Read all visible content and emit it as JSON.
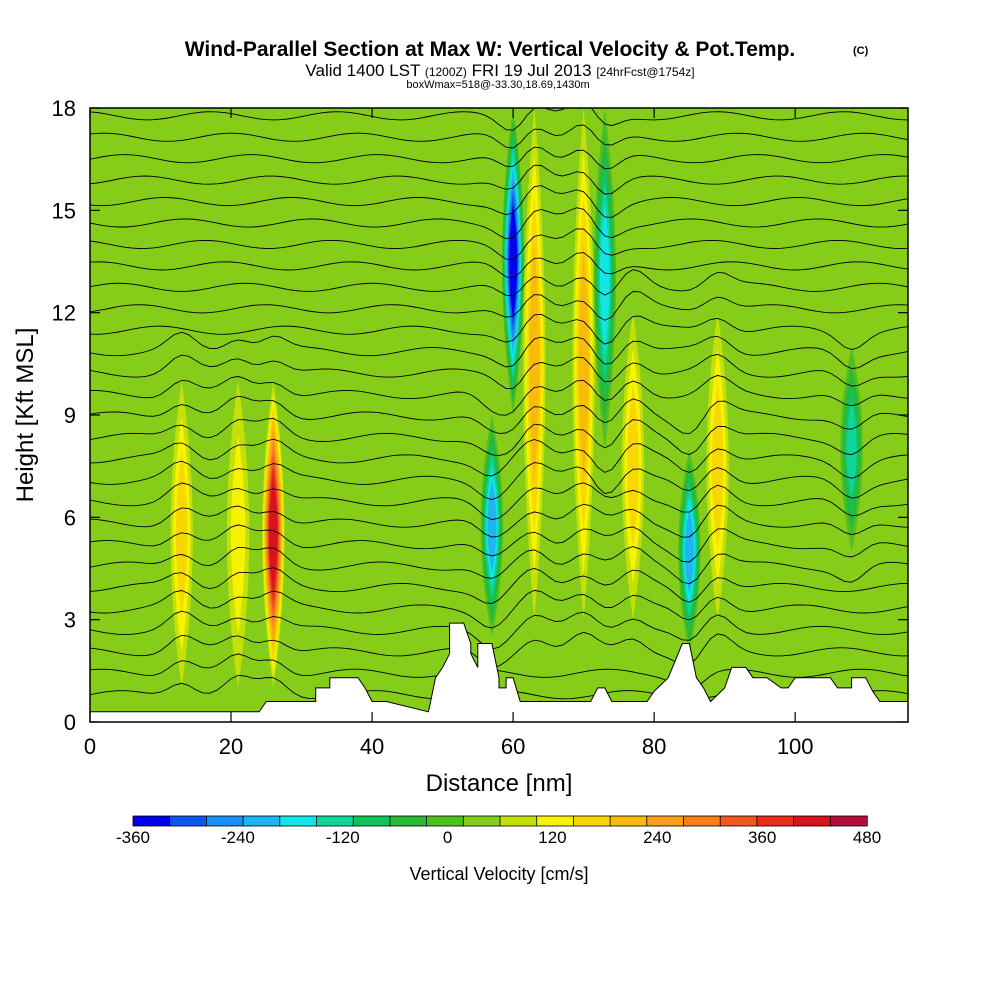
{
  "title": {
    "main": "Wind-Parallel Section at Max W: Vertical Velocity & Pot.Temp.",
    "copyright": "(C)",
    "sub_a": "Valid 1400 LST",
    "sub_b": "(1200Z)",
    "sub_c": "FRI 19 Jul 2013",
    "sub_d": "[24hrFcst@1754z]",
    "small": "boxWmax=518@-33.30,18.69,1430m"
  },
  "chart_data": {
    "type": "heatmap",
    "title": "Wind-Parallel Section at Max W: Vertical Velocity & Pot.Temp.",
    "xlabel": "Distance [nm]",
    "ylabel": "Height [Kft MSL]",
    "xlim": [
      0,
      116
    ],
    "ylim": [
      0,
      18
    ],
    "xticks": [
      0,
      20,
      40,
      60,
      80,
      100
    ],
    "yticks": [
      0,
      3,
      6,
      9,
      12,
      15,
      18
    ],
    "background_value_cm_s": 30,
    "velocity_features": [
      {
        "x": 26,
        "value": 420,
        "ymin": 1.0,
        "ymax": 10,
        "sign": "up"
      },
      {
        "x": 13,
        "value": 150,
        "ymin": 1.0,
        "ymax": 10,
        "sign": "up"
      },
      {
        "x": 21,
        "value": 120,
        "ymin": 1.0,
        "ymax": 10,
        "sign": "up"
      },
      {
        "x": 57,
        "value": -210,
        "ymin": 2.5,
        "ymax": 9,
        "sign": "down"
      },
      {
        "x": 60,
        "value": -330,
        "ymin": 9,
        "ymax": 18,
        "sign": "down"
      },
      {
        "x": 63,
        "value": 200,
        "ymin": 3,
        "ymax": 18,
        "sign": "up"
      },
      {
        "x": 70,
        "value": 200,
        "ymin": 3,
        "ymax": 18,
        "sign": "up"
      },
      {
        "x": 73,
        "value": -180,
        "ymin": 8,
        "ymax": 18,
        "sign": "down"
      },
      {
        "x": 77,
        "value": 180,
        "ymin": 3,
        "ymax": 12,
        "sign": "up"
      },
      {
        "x": 85,
        "value": -210,
        "ymin": 2,
        "ymax": 8,
        "sign": "down"
      },
      {
        "x": 89,
        "value": 160,
        "ymin": 3,
        "ymax": 12,
        "sign": "up"
      },
      {
        "x": 108,
        "value": -150,
        "ymin": 5,
        "ymax": 11,
        "sign": "down"
      }
    ],
    "terrain_kft": [
      [
        0,
        0.3
      ],
      [
        24,
        0.3
      ],
      [
        25,
        0.6
      ],
      [
        32,
        0.6
      ],
      [
        32,
        1.0
      ],
      [
        34,
        1.0
      ],
      [
        34,
        1.3
      ],
      [
        38,
        1.3
      ],
      [
        39,
        1.0
      ],
      [
        40,
        0.6
      ],
      [
        42,
        0.6
      ],
      [
        48,
        0.3
      ],
      [
        49,
        1.3
      ],
      [
        50,
        1.6
      ],
      [
        51,
        2.0
      ],
      [
        51,
        2.9
      ],
      [
        53,
        2.9
      ],
      [
        54,
        2.3
      ],
      [
        54,
        2.0
      ],
      [
        55,
        1.6
      ],
      [
        55,
        2.3
      ],
      [
        57,
        2.3
      ],
      [
        58,
        1.3
      ],
      [
        58,
        1.0
      ],
      [
        59,
        1.0
      ],
      [
        59,
        1.3
      ],
      [
        60,
        1.3
      ],
      [
        61,
        0.6
      ],
      [
        71,
        0.6
      ],
      [
        72,
        1.0
      ],
      [
        73,
        1.0
      ],
      [
        74,
        0.6
      ],
      [
        79,
        0.6
      ],
      [
        80,
        0.9
      ],
      [
        81,
        1.1
      ],
      [
        82,
        1.3
      ],
      [
        83,
        1.8
      ],
      [
        84,
        2.3
      ],
      [
        85,
        2.3
      ],
      [
        86,
        1.3
      ],
      [
        87,
        1.0
      ],
      [
        88,
        0.6
      ],
      [
        90,
        1.0
      ],
      [
        91,
        1.6
      ],
      [
        93,
        1.6
      ],
      [
        94,
        1.3
      ],
      [
        96,
        1.3
      ],
      [
        98,
        1.0
      ],
      [
        99,
        1.0
      ],
      [
        100,
        1.3
      ],
      [
        105,
        1.3
      ],
      [
        106,
        1.0
      ],
      [
        108,
        1.0
      ],
      [
        108,
        1.3
      ],
      [
        110,
        1.3
      ],
      [
        111,
        0.9
      ],
      [
        112,
        0.6
      ],
      [
        116,
        0.6
      ]
    ],
    "theta_isentropes_count": 28
  },
  "colorbar": {
    "label": "Vertical Velocity [cm/s]",
    "min": -360,
    "max": 480,
    "step": 40,
    "tick_values": [
      -360,
      -240,
      -120,
      0,
      120,
      240,
      360,
      480
    ],
    "tick_labels": [
      "-360",
      "-240",
      "-120",
      "0",
      "120",
      "240",
      "360",
      "480"
    ],
    "colors": [
      "#0000ee",
      "#1155f0",
      "#1b8ef2",
      "#20b4f0",
      "#10e6e6",
      "#10d49a",
      "#14c25a",
      "#2bb836",
      "#4fbf21",
      "#86cd1a",
      "#c5e007",
      "#f7f300",
      "#f6d800",
      "#f7bc0a",
      "#f89f1c",
      "#f67e20",
      "#f0591f",
      "#ea2c1b",
      "#d7131e",
      "#b0103a"
    ]
  }
}
